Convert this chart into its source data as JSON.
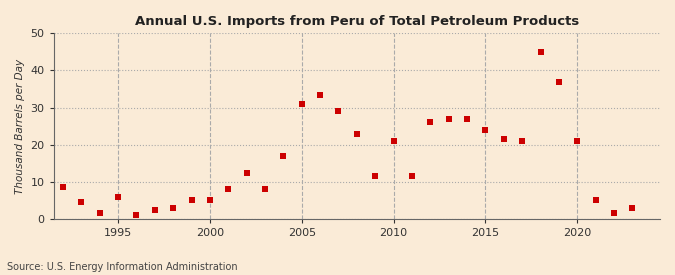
{
  "title": "Annual U.S. Imports from Peru of Total Petroleum Products",
  "ylabel": "Thousand Barrels per Day",
  "source": "Source: U.S. Energy Information Administration",
  "background_color": "#faebd7",
  "plot_bg_color": "#faebd7",
  "marker_color": "#cc0000",
  "marker_size": 4,
  "ylim": [
    0,
    50
  ],
  "yticks": [
    0,
    10,
    20,
    30,
    40,
    50
  ],
  "xlim": [
    1991.5,
    2024.5
  ],
  "xticks": [
    1995,
    2000,
    2005,
    2010,
    2015,
    2020
  ],
  "years": [
    1992,
    1993,
    1994,
    1995,
    1996,
    1997,
    1998,
    1999,
    2000,
    2001,
    2002,
    2003,
    2004,
    2005,
    2006,
    2007,
    2008,
    2009,
    2010,
    2011,
    2012,
    2013,
    2014,
    2015,
    2016,
    2017,
    2018,
    2019,
    2020,
    2021,
    2022,
    2023
  ],
  "values": [
    8.5,
    4.5,
    1.5,
    6.0,
    1.0,
    2.5,
    3.0,
    5.0,
    5.0,
    8.0,
    12.5,
    8.0,
    17.0,
    31.0,
    33.5,
    29.0,
    23.0,
    11.5,
    21.0,
    11.5,
    26.0,
    27.0,
    27.0,
    24.0,
    21.5,
    21.0,
    45.0,
    37.0,
    21.0,
    5.0,
    1.5,
    3.0
  ],
  "grid_color": "#aaaaaa",
  "grid_linestyle": ":",
  "vgrid_linestyle": "--",
  "spine_color": "#666666"
}
